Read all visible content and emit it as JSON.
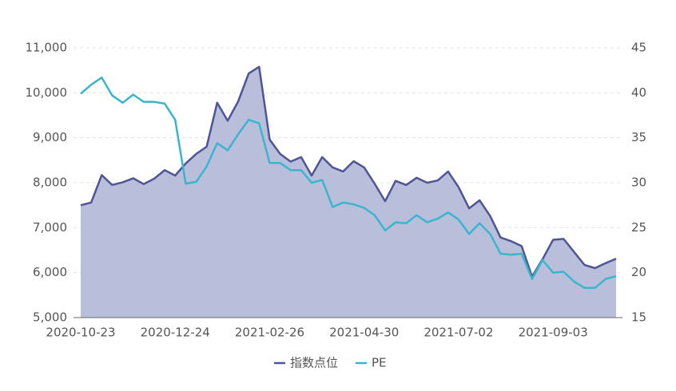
{
  "chart_data": {
    "type": "line",
    "categories": [
      "2020-10-23",
      null,
      null,
      null,
      null,
      null,
      null,
      null,
      null,
      "2020-12-24",
      null,
      null,
      null,
      null,
      null,
      null,
      null,
      null,
      "2021-02-26",
      null,
      null,
      null,
      null,
      null,
      null,
      null,
      null,
      "2021-04-30",
      null,
      null,
      null,
      null,
      null,
      null,
      null,
      null,
      "2021-07-02",
      null,
      null,
      null,
      null,
      null,
      null,
      null,
      null,
      "2021-09-03",
      null,
      null,
      null,
      null,
      null,
      null
    ],
    "series": [
      {
        "name": "指数点位",
        "color": "#4e5597",
        "area": true,
        "areaColor": "#b9bedb",
        "axis": "y",
        "values": [
          7500,
          7560,
          8170,
          7950,
          8010,
          8100,
          7970,
          8090,
          8280,
          8160,
          8430,
          8640,
          8800,
          9780,
          9380,
          9810,
          10430,
          10580,
          8960,
          8640,
          8470,
          8570,
          8160,
          8570,
          8340,
          8250,
          8480,
          8340,
          7980,
          7590,
          8040,
          7950,
          8110,
          8000,
          8050,
          8250,
          7900,
          7430,
          7610,
          7260,
          6780,
          6700,
          6590,
          5910,
          6300,
          6730,
          6750,
          6460,
          6170,
          6100,
          6210,
          6310
        ]
      },
      {
        "name": "PE",
        "color": "#3bb5cc",
        "area": false,
        "axis": "y2",
        "values": [
          39.9,
          40.9,
          41.7,
          39.7,
          38.9,
          39.8,
          39.0,
          39.0,
          38.8,
          37.0,
          29.9,
          30.1,
          31.8,
          34.4,
          33.6,
          35.4,
          37.0,
          36.6,
          32.2,
          32.2,
          31.4,
          31.4,
          30.0,
          30.3,
          27.3,
          27.8,
          27.6,
          27.2,
          26.4,
          24.7,
          25.6,
          25.5,
          26.4,
          25.6,
          26.0,
          26.7,
          25.9,
          24.3,
          25.5,
          24.3,
          22.1,
          22.0,
          22.1,
          19.3,
          21.4,
          20.0,
          20.1,
          19.0,
          18.3,
          18.3,
          19.3,
          19.6
        ]
      }
    ],
    "ylim": [
      5000,
      11000
    ],
    "yticks": [
      {
        "value": 5000,
        "label": "5,000"
      },
      {
        "value": 6000,
        "label": "6,000"
      },
      {
        "value": 7000,
        "label": "7,000"
      },
      {
        "value": 8000,
        "label": "8,000"
      },
      {
        "value": 9000,
        "label": "9,000"
      },
      {
        "value": 10000,
        "label": "10,000"
      },
      {
        "value": 11000,
        "label": "11,000"
      }
    ],
    "y2lim": [
      15,
      45
    ],
    "y2ticks": [
      15,
      20,
      25,
      30,
      35,
      40,
      45
    ],
    "grid": true,
    "legend": "bottom"
  }
}
